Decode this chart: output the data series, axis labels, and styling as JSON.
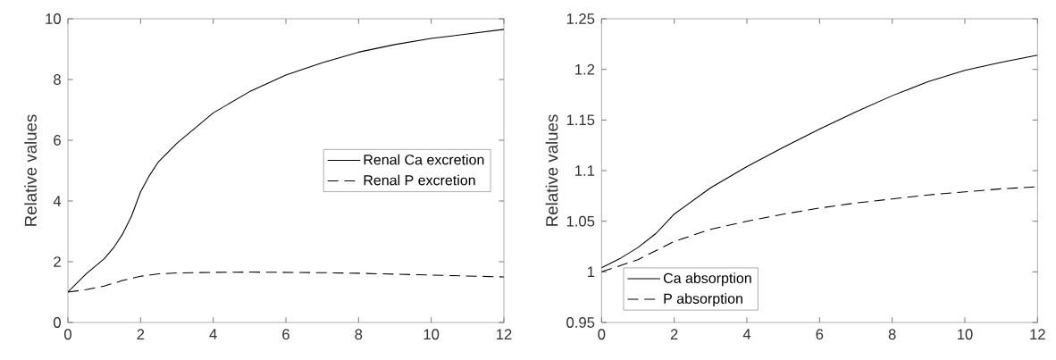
{
  "chart_data": [
    {
      "type": "line",
      "ylabel": "Relative values",
      "xlim": [
        0,
        12
      ],
      "xticks": [
        0,
        2,
        4,
        6,
        8,
        10,
        12
      ],
      "ylim": [
        0,
        10
      ],
      "yticks": [
        0,
        2,
        4,
        6,
        8,
        10
      ],
      "legend": "right",
      "grid": false,
      "series": [
        {
          "name": "Renal Ca excretion",
          "color": "#000000",
          "line_style": "solid",
          "x": [
            0,
            0.25,
            0.5,
            0.75,
            1,
            1.25,
            1.5,
            1.75,
            2,
            2.25,
            2.5,
            3,
            4,
            5,
            6,
            7,
            8,
            9,
            10,
            11,
            12
          ],
          "values": [
            1.0,
            1.3,
            1.6,
            1.85,
            2.1,
            2.45,
            2.9,
            3.5,
            4.3,
            4.85,
            5.3,
            5.9,
            6.9,
            7.6,
            8.15,
            8.55,
            8.9,
            9.15,
            9.35,
            9.5,
            9.65
          ]
        },
        {
          "name": "Renal P excretion",
          "color": "#000000",
          "line_style": "dashed",
          "x": [
            0,
            0.5,
            1,
            1.5,
            2,
            2.5,
            3,
            4,
            5,
            6,
            7,
            8,
            9,
            10,
            11,
            12
          ],
          "values": [
            1.0,
            1.08,
            1.2,
            1.38,
            1.52,
            1.6,
            1.63,
            1.65,
            1.66,
            1.65,
            1.64,
            1.62,
            1.59,
            1.56,
            1.53,
            1.5
          ]
        }
      ]
    },
    {
      "type": "line",
      "ylabel": "Relative values",
      "xlim": [
        0,
        12
      ],
      "xticks": [
        0,
        2,
        4,
        6,
        8,
        10,
        12
      ],
      "ylim": [
        0.95,
        1.25
      ],
      "yticks": [
        0.95,
        1,
        1.05,
        1.1,
        1.15,
        1.2,
        1.25
      ],
      "legend": "bottom left",
      "grid": false,
      "series": [
        {
          "name": "Ca absorption",
          "color": "#000000",
          "line_style": "solid",
          "x": [
            0,
            0.5,
            1,
            1.5,
            2,
            3,
            4,
            5,
            6,
            7,
            8,
            9,
            10,
            11,
            12
          ],
          "values": [
            1.004,
            1.013,
            1.024,
            1.038,
            1.057,
            1.083,
            1.104,
            1.123,
            1.141,
            1.158,
            1.174,
            1.188,
            1.199,
            1.207,
            1.214
          ]
        },
        {
          "name": "P absorption",
          "color": "#000000",
          "line_style": "dashed",
          "x": [
            0,
            1,
            2,
            3,
            4,
            5,
            6,
            7,
            8,
            9,
            10,
            11,
            12
          ],
          "values": [
            1.0,
            1.012,
            1.03,
            1.042,
            1.05,
            1.057,
            1.063,
            1.068,
            1.072,
            1.076,
            1.079,
            1.082,
            1.084
          ]
        }
      ]
    }
  ]
}
